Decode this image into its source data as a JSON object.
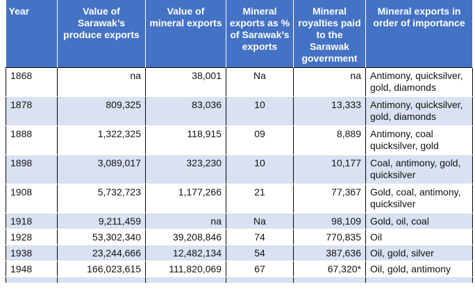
{
  "table": {
    "headers": [
      "Year",
      "Value of Sarawak’s produce exports",
      "Value of mineral exports",
      "Mineral exports as % of Sarawak’s exports",
      "Mineral royalties paid to the Sarawak government",
      "Mineral exports in order of importance"
    ],
    "rows": [
      [
        "1868",
        "na",
        "38,001",
        "Na",
        "na",
        "Antimony, quicksilver, gold, diamonds"
      ],
      [
        "1878",
        "809,325",
        "83,036",
        "10",
        "13,333",
        "Antimony, quicksilver, gold, diamonds"
      ],
      [
        "1888",
        "1,322,325",
        "118,915",
        "09",
        "8,889",
        "Antimony, coal quicksilver, gold"
      ],
      [
        "1898",
        "3,089,017",
        "323,230",
        "10",
        "10,177",
        "Coal, antimony, gold, quicksilver"
      ],
      [
        "1908",
        "5,732,723",
        "1,177,266",
        "21",
        "77,367",
        "Gold, coal, antimony, quicksilver"
      ],
      [
        "1918",
        "9,211,459",
        "na",
        "Na",
        "98,109",
        "Gold, oil, coal"
      ],
      [
        "1928",
        "53,302,340",
        "39,208,846",
        "74",
        "770,835",
        "Oil"
      ],
      [
        "1938",
        "23,244,666",
        "12,482,134",
        "54",
        "387,636",
        "Oil, gold, silver"
      ],
      [
        "1948",
        "166,023,615",
        "111,820,069",
        "67",
        "67,320*",
        "Oil, gold, antimony"
      ]
    ]
  },
  "colors": {
    "header_bg": "#4472c4",
    "band_bg": "#d9e1f2"
  }
}
